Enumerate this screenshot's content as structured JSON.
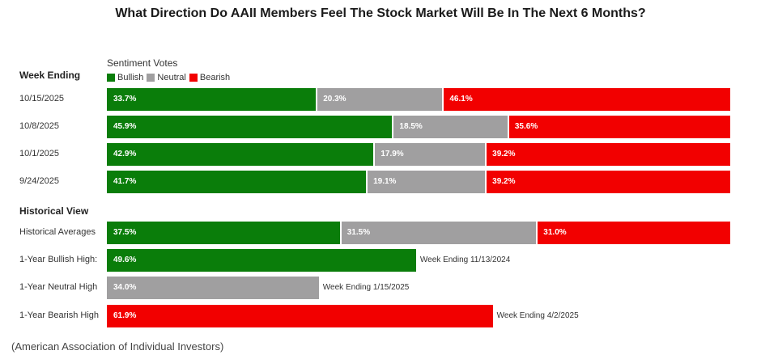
{
  "chart_data": {
    "type": "stacked-bar-horizontal",
    "title": "What Direction Do AAII Members Feel The Stock Market Will Be In The Next 6 Months?",
    "subtitle": "Sentiment Votes",
    "legend": [
      {
        "name": "Bullish",
        "color": "#0a7d0a"
      },
      {
        "name": "Neutral",
        "color": "#a09fa0"
      },
      {
        "name": "Bearish",
        "color": "#f20000"
      }
    ],
    "weekly_header": "Week Ending",
    "weekly": [
      {
        "label": "10/15/2025",
        "bullish": 33.7,
        "neutral": 20.3,
        "bearish": 46.1,
        "bullish_label": "33.7%",
        "neutral_label": "20.3%",
        "bearish_label": "46.1%"
      },
      {
        "label": "10/8/2025",
        "bullish": 45.9,
        "neutral": 18.5,
        "bearish": 35.6,
        "bullish_label": "45.9%",
        "neutral_label": "18.5%",
        "bearish_label": "35.6%"
      },
      {
        "label": "10/1/2025",
        "bullish": 42.9,
        "neutral": 17.9,
        "bearish": 39.2,
        "bullish_label": "42.9%",
        "neutral_label": "17.9%",
        "bearish_label": "39.2%"
      },
      {
        "label": "9/24/2025",
        "bullish": 41.7,
        "neutral": 19.1,
        "bearish": 39.2,
        "bullish_label": "41.7%",
        "neutral_label": "19.1%",
        "bearish_label": "39.2%"
      }
    ],
    "historical_header": "Historical View",
    "historical_averages": {
      "label": "Historical Averages",
      "bullish": 37.5,
      "neutral": 31.5,
      "bearish": 31.0,
      "bullish_label": "37.5%",
      "neutral_label": "31.5%",
      "bearish_label": "31.0%"
    },
    "highs": [
      {
        "label": "1-Year Bullish High:",
        "series": "Bullish",
        "value": 49.6,
        "value_label": "49.6%",
        "note": "Week Ending 11/13/2024"
      },
      {
        "label": "1-Year Neutral High",
        "series": "Neutral",
        "value": 34.0,
        "value_label": "34.0%",
        "note": "Week Ending 1/15/2025"
      },
      {
        "label": "1-Year Bearish High",
        "series": "Bearish",
        "value": 61.9,
        "value_label": "61.9%",
        "note": "Week Ending 4/2/2025"
      }
    ],
    "xlim": [
      0,
      100
    ]
  },
  "caption": "(American Association of Individual Investors)"
}
